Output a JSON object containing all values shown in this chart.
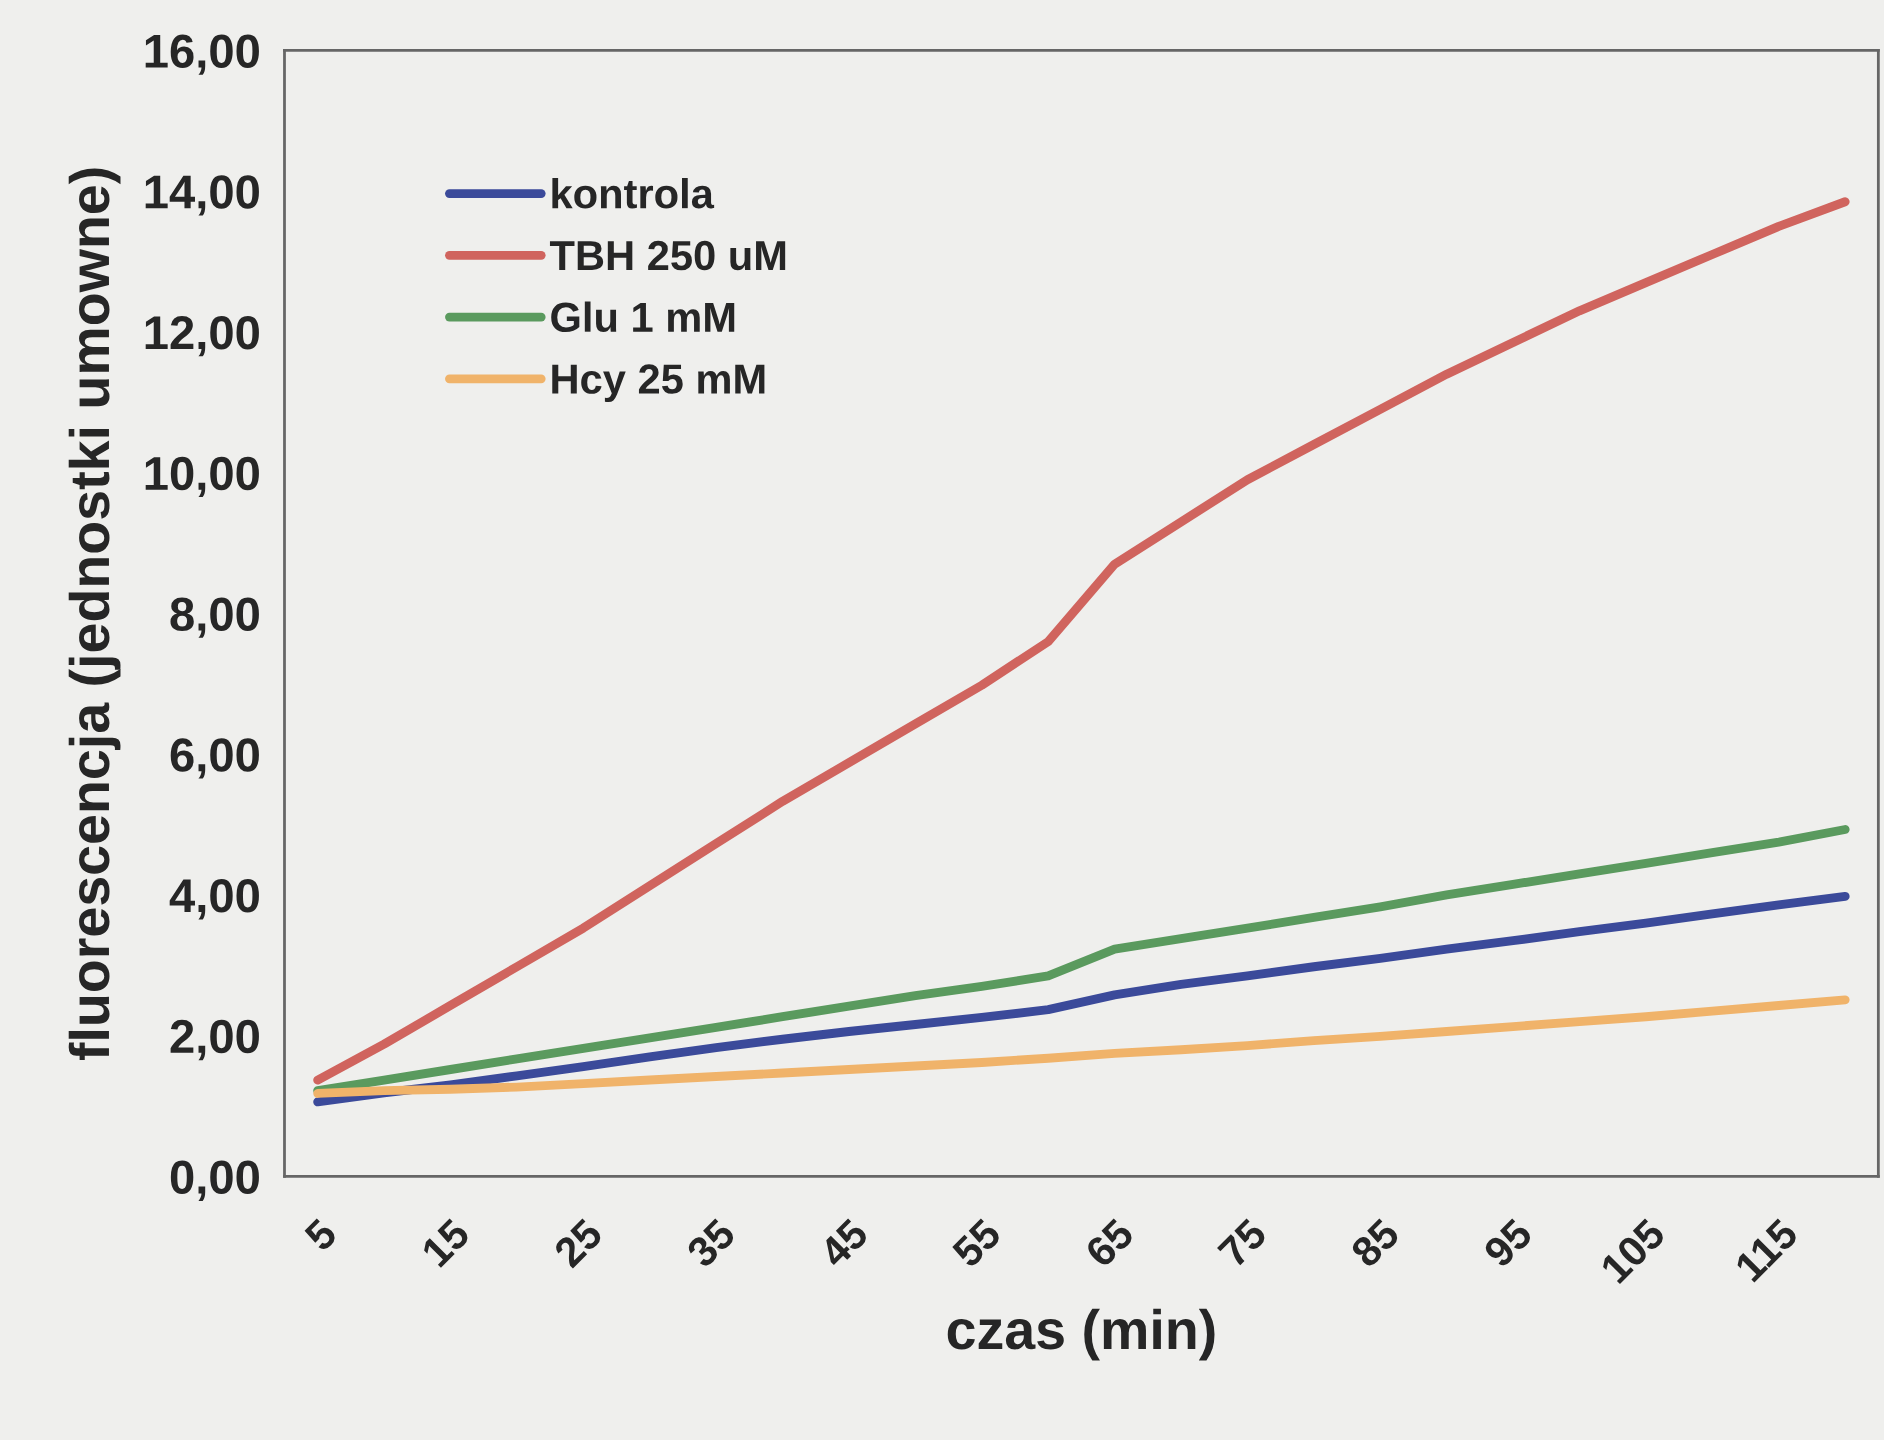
{
  "chart_data": {
    "type": "line",
    "xlabel": "czas (min)",
    "ylabel": "fluorescencja (jednostki umowne)",
    "categories": [
      "5",
      null,
      "15",
      null,
      "25",
      null,
      "35",
      null,
      "45",
      null,
      "55",
      null,
      "65",
      null,
      "75",
      null,
      "85",
      null,
      "95",
      null,
      "105",
      null,
      "115",
      null
    ],
    "series": [
      {
        "name": "kontrola",
        "color": "#3b4a9a",
        "values": [
          1.06,
          1.19,
          1.3,
          1.43,
          1.56,
          1.7,
          1.83,
          1.95,
          2.06,
          2.16,
          2.26,
          2.37,
          2.58,
          2.73,
          2.85,
          2.98,
          3.1,
          3.23,
          3.35,
          3.48,
          3.6,
          3.73,
          3.86,
          3.98
        ]
      },
      {
        "name": "TBH 250 uM",
        "color": "#d0645e",
        "values": [
          1.37,
          1.88,
          2.43,
          2.98,
          3.53,
          4.13,
          4.73,
          5.33,
          5.88,
          6.43,
          6.98,
          7.6,
          8.7,
          9.3,
          9.9,
          10.4,
          10.9,
          11.4,
          11.85,
          12.3,
          12.7,
          13.1,
          13.5,
          13.85
        ]
      },
      {
        "name": "Glu 1 mM",
        "color": "#5a9a5e",
        "values": [
          1.22,
          1.37,
          1.52,
          1.67,
          1.82,
          1.97,
          2.12,
          2.27,
          2.42,
          2.57,
          2.7,
          2.85,
          3.23,
          3.38,
          3.53,
          3.68,
          3.83,
          4.0,
          4.15,
          4.3,
          4.45,
          4.6,
          4.75,
          4.93
        ]
      },
      {
        "name": "Hcy 25 mM",
        "color": "#f0b36a",
        "values": [
          1.18,
          1.22,
          1.24,
          1.27,
          1.32,
          1.37,
          1.42,
          1.47,
          1.52,
          1.57,
          1.62,
          1.68,
          1.75,
          1.8,
          1.86,
          1.93,
          1.99,
          2.06,
          2.13,
          2.2,
          2.27,
          2.35,
          2.43,
          2.51
        ]
      }
    ],
    "ylim": [
      0,
      16
    ],
    "yticks": [
      {
        "value": 0,
        "label": "0,00"
      },
      {
        "value": 2,
        "label": "2,00"
      },
      {
        "value": 4,
        "label": "4,00"
      },
      {
        "value": 6,
        "label": "6,00"
      },
      {
        "value": 8,
        "label": "8,00"
      },
      {
        "value": 10,
        "label": "10,00"
      },
      {
        "value": 12,
        "label": "12,00"
      },
      {
        "value": 14,
        "label": "14,00"
      },
      {
        "value": 16,
        "label": "16,00"
      }
    ],
    "grid": false,
    "legend": "top left",
    "marker": "none",
    "line_style": "solid"
  }
}
